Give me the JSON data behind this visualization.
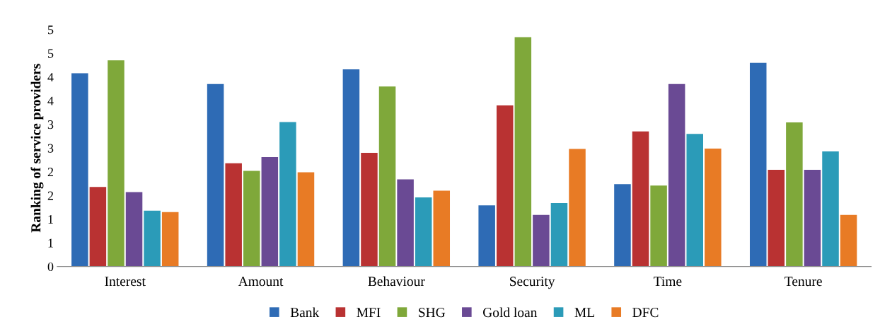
{
  "chart_data": {
    "type": "bar",
    "ylabel": "Ranking of service providers",
    "categories": [
      "Interest",
      "Amount",
      "Behaviour",
      "Security",
      "Time",
      "Tenure"
    ],
    "series": [
      {
        "name": "Bank",
        "color": "#2e6bb5",
        "values": [
          4.08,
          3.85,
          4.16,
          1.29,
          1.74,
          4.3
        ]
      },
      {
        "name": "MFI",
        "color": "#b93232",
        "values": [
          1.68,
          2.18,
          2.4,
          3.4,
          2.85,
          2.04
        ]
      },
      {
        "name": "SHG",
        "color": "#7fa83a",
        "values": [
          4.35,
          2.02,
          3.8,
          4.84,
          1.71,
          3.04
        ]
      },
      {
        "name": "Gold loan",
        "color": "#6a4a94",
        "values": [
          1.57,
          2.31,
          1.84,
          1.09,
          3.85,
          2.04
        ]
      },
      {
        "name": "ML",
        "color": "#2b9bb8",
        "values": [
          1.18,
          3.05,
          1.46,
          1.34,
          2.8,
          2.43
        ]
      },
      {
        "name": "DFC",
        "color": "#e87b25",
        "values": [
          1.15,
          1.99,
          1.6,
          2.48,
          2.49,
          1.09
        ]
      }
    ],
    "ylim": [
      0,
      5
    ],
    "yticks": [
      0,
      {
        "value": 0.5,
        "label": "1"
      },
      1,
      {
        "value": 1.5,
        "label": "2"
      },
      2,
      {
        "value": 2.5,
        "label": "3"
      },
      3,
      {
        "value": 3.5,
        "label": "4"
      },
      4,
      {
        "value": 4.5,
        "label": "5"
      },
      5
    ],
    "grid": false,
    "legend": "bottom"
  }
}
